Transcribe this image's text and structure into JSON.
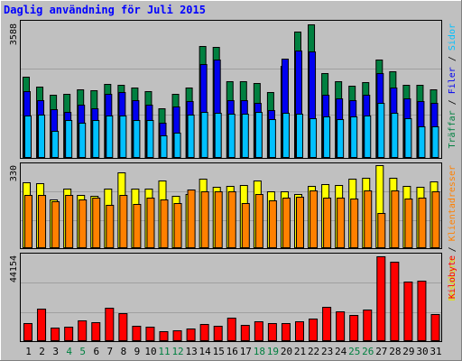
{
  "title": "Daglig användning för Juli 2015",
  "colors": {
    "background": "#C0C0C0",
    "frame_light": "#FFFFFF",
    "frame_dark": "#808080",
    "title": "#0000FF",
    "grid": "#A0A0A0",
    "traffar": "#008040",
    "filer": "#0000F0",
    "sidor": "#00C0FF",
    "besokare": "#FFFF00",
    "klientadresser": "#FF8000",
    "kilobyte": "#FF0000",
    "weekend_label": "#008040"
  },
  "chart_data": [
    {
      "type": "bar",
      "panel": "top",
      "ytick_top": "3588",
      "ylim": [
        0,
        3588
      ],
      "ylabel_parts": [
        {
          "text": "Träffar",
          "color": "#008040"
        },
        {
          "text": " / ",
          "color": "#000000"
        },
        {
          "text": "Filer",
          "color": "#0000F0"
        },
        {
          "text": " / ",
          "color": "#000000"
        },
        {
          "text": "Sidor",
          "color": "#00C0FF"
        }
      ],
      "categories": [
        "1",
        "2",
        "3",
        "4",
        "5",
        "6",
        "7",
        "8",
        "9",
        "10",
        "11",
        "12",
        "13",
        "14",
        "15",
        "16",
        "17",
        "18",
        "19",
        "20",
        "21",
        "22",
        "23",
        "24",
        "25",
        "26",
        "27",
        "28",
        "29",
        "30",
        "31"
      ],
      "series": [
        {
          "name": "Träffar",
          "values": [
            2160,
            1910,
            1690,
            1720,
            1830,
            1810,
            1980,
            1960,
            1890,
            1770,
            1330,
            1710,
            1870,
            2980,
            2960,
            2050,
            2050,
            2000,
            1750,
            2460,
            3360,
            3560,
            2270,
            2040,
            1930,
            2020,
            2630,
            2300,
            1950,
            1940,
            1830
          ]
        },
        {
          "name": "Filer",
          "values": [
            1770,
            1540,
            1290,
            1240,
            1420,
            1330,
            1700,
            1750,
            1540,
            1410,
            950,
            1370,
            1510,
            2510,
            2630,
            1540,
            1550,
            1480,
            1270,
            2640,
            2860,
            2850,
            1690,
            1600,
            1540,
            1680,
            2260,
            1870,
            1590,
            1520,
            1470
          ]
        },
        {
          "name": "Sidor",
          "values": [
            1140,
            1150,
            730,
            1020,
            950,
            1000,
            1140,
            1120,
            1000,
            1000,
            600,
            680,
            1150,
            1240,
            1200,
            1190,
            1180,
            1220,
            1030,
            1200,
            1190,
            1060,
            1110,
            1030,
            1100,
            1130,
            1480,
            1210,
            1060,
            840,
            840
          ]
        }
      ]
    },
    {
      "type": "bar",
      "panel": "middle",
      "ytick_top": "330",
      "ylim": [
        0,
        330
      ],
      "ylabel_parts": [
        {
          "text": "Besökare",
          "color": "#E0E000"
        },
        {
          "text": " / ",
          "color": "#000000"
        },
        {
          "text": "Klientadresser",
          "color": "#FF8000"
        }
      ],
      "categories": [
        "1",
        "2",
        "3",
        "4",
        "5",
        "6",
        "7",
        "8",
        "9",
        "10",
        "11",
        "12",
        "13",
        "14",
        "15",
        "16",
        "17",
        "18",
        "19",
        "20",
        "21",
        "22",
        "23",
        "24",
        "25",
        "26",
        "27",
        "28",
        "29",
        "30",
        "31"
      ],
      "series": [
        {
          "name": "Besökare",
          "values": [
            263,
            258,
            193,
            237,
            211,
            208,
            235,
            300,
            238,
            235,
            270,
            208,
            217,
            275,
            243,
            248,
            250,
            270,
            225,
            225,
            215,
            249,
            253,
            251,
            276,
            278,
            330,
            281,
            247,
            244,
            265
          ]
        },
        {
          "name": "Klientadresser",
          "values": [
            212,
            210,
            185,
            210,
            195,
            202,
            173,
            212,
            175,
            200,
            193,
            180,
            233,
            225,
            225,
            225,
            180,
            217,
            190,
            200,
            203,
            230,
            202,
            200,
            197,
            230,
            140,
            230,
            198,
            200,
            225
          ]
        }
      ]
    },
    {
      "type": "bar",
      "panel": "bottom",
      "ytick_top": "44154",
      "ylim": [
        0,
        44154
      ],
      "ylabel_parts": [
        {
          "text": "Kilobyte",
          "color": "#FF0000"
        }
      ],
      "categories": [
        "1",
        "2",
        "3",
        "4",
        "5",
        "6",
        "7",
        "8",
        "9",
        "10",
        "11",
        "12",
        "13",
        "14",
        "15",
        "16",
        "17",
        "18",
        "19",
        "20",
        "21",
        "22",
        "23",
        "24",
        "25",
        "26",
        "27",
        "28",
        "29",
        "30",
        "31"
      ],
      "series": [
        {
          "name": "Kilobyte",
          "values": [
            9100,
            16700,
            6800,
            7300,
            10500,
            9600,
            17300,
            14300,
            7800,
            7600,
            5100,
            5700,
            6600,
            9000,
            7700,
            12000,
            8200,
            10300,
            9100,
            9400,
            10200,
            11400,
            17700,
            15300,
            13700,
            16100,
            43500,
            40700,
            30500,
            31000,
            13900
          ]
        }
      ]
    }
  ],
  "xaxis": {
    "labels": [
      "1",
      "2",
      "3",
      "4",
      "5",
      "6",
      "7",
      "8",
      "9",
      "10",
      "11",
      "12",
      "13",
      "14",
      "15",
      "16",
      "17",
      "18",
      "19",
      "20",
      "21",
      "22",
      "23",
      "24",
      "25",
      "26",
      "27",
      "28",
      "29",
      "30",
      "31"
    ],
    "weekend": [
      4,
      5,
      11,
      12,
      18,
      19,
      25,
      26
    ]
  }
}
